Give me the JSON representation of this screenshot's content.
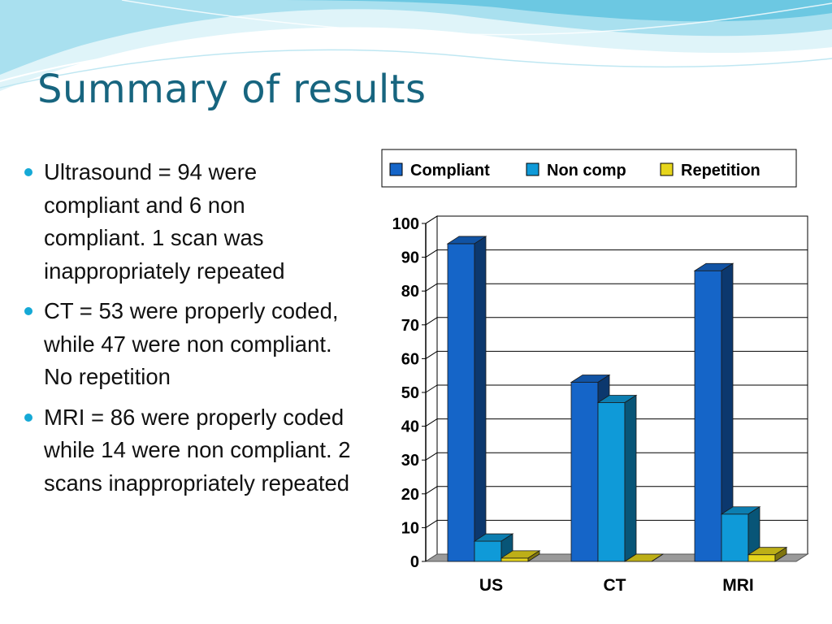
{
  "slide": {
    "title": "Summary of results",
    "bullets": [
      "Ultrasound = 94 were compliant and 6 non compliant. 1 scan was inappropriately repeated",
      "CT = 53 were properly coded, while 47 were non compliant. No repetition",
      "MRI = 86 were properly coded while 14 were non compliant. 2 scans inappropriately repeated"
    ]
  },
  "colors": {
    "title": "#17657f",
    "bullet": "#15a9d6",
    "wave_light": "#d9f2f8",
    "wave_mid": "#9fdcec",
    "wave_dark": "#5fc3df"
  },
  "chart_data": {
    "type": "bar",
    "style": "3d-clustered-column",
    "categories": [
      "US",
      "CT",
      "MRI"
    ],
    "series": [
      {
        "name": "Compliant",
        "values": [
          94,
          53,
          86
        ],
        "color": "#1565c8"
      },
      {
        "name": "Non comp",
        "values": [
          6,
          47,
          14
        ],
        "color": "#0f9ad8"
      },
      {
        "name": "Repetition",
        "values": [
          1,
          0,
          2
        ],
        "color": "#e6d51c"
      }
    ],
    "ylim": [
      0,
      100
    ],
    "yticks": [
      0,
      10,
      20,
      30,
      40,
      50,
      60,
      70,
      80,
      90,
      100
    ],
    "grid": true,
    "legend_position": "top"
  }
}
